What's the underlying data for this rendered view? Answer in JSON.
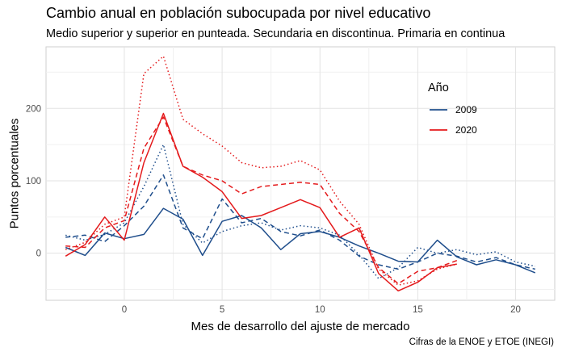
{
  "chart_data": {
    "type": "line",
    "title": "Cambio anual en población subocupada por nivel educativo",
    "subtitle": "Medio superior y superior en punteada. Secundaria en discontinua. Primaria en continua",
    "caption": "Cifras de la ENOE y ETOE (INEGI)",
    "xlabel": "Mes de desarrollo del ajuste de mercado",
    "ylabel": "Puntos porcentuales",
    "xlim": [
      -4,
      22
    ],
    "ylim": [
      -65,
      285
    ],
    "xticks": [
      0,
      5,
      10,
      15,
      20
    ],
    "yticks": [
      0,
      100,
      200
    ],
    "grid": true,
    "legend": {
      "title": "Año",
      "position": "right-inside",
      "entries": [
        "2009",
        "2020"
      ]
    },
    "colors": {
      "2009": "#1f4e8c",
      "2020": "#e41a1c"
    },
    "series": [
      {
        "name": "2009",
        "level": "Primaria",
        "linetype": "solid",
        "x": [
          -3,
          -2,
          -1,
          0,
          1,
          2,
          3,
          4,
          5,
          6,
          7,
          8,
          9,
          10,
          11,
          12,
          13,
          14,
          15,
          16,
          17,
          18,
          19,
          20,
          21
        ],
        "y": [
          8,
          -3,
          28,
          20,
          26,
          62,
          47,
          -3,
          44,
          52,
          35,
          5,
          27,
          30,
          22,
          10,
          0,
          -11,
          -12,
          18,
          -5,
          -16,
          -9,
          -16,
          -27
        ]
      },
      {
        "name": "2009",
        "level": "Secundaria",
        "linetype": "dashed",
        "x": [
          -3,
          -2,
          -1,
          0,
          1,
          2,
          3,
          4,
          5,
          6,
          7,
          8,
          9,
          10,
          11,
          12,
          13,
          14,
          15,
          16,
          17,
          18,
          19,
          20,
          21
        ],
        "y": [
          22,
          25,
          16,
          38,
          65,
          108,
          35,
          20,
          75,
          42,
          48,
          30,
          24,
          32,
          18,
          -4,
          -16,
          -22,
          -12,
          0,
          -4,
          -12,
          -6,
          -16,
          -22
        ]
      },
      {
        "name": "2009",
        "level": "Medio superior y superior",
        "linetype": "dotted",
        "x": [
          -3,
          -2,
          -1,
          0,
          1,
          2,
          3,
          4,
          5,
          6,
          7,
          8,
          9,
          10,
          11,
          12,
          13,
          14,
          15,
          16,
          17,
          18,
          19,
          20,
          21
        ],
        "y": [
          25,
          18,
          26,
          42,
          92,
          150,
          40,
          14,
          30,
          38,
          42,
          32,
          38,
          35,
          25,
          -2,
          -35,
          -20,
          8,
          0,
          5,
          -2,
          2,
          -12,
          -18
        ]
      },
      {
        "name": "2020",
        "level": "Primaria",
        "linetype": "solid",
        "x": [
          -3,
          -2,
          -1,
          0,
          1,
          2,
          3,
          4,
          5,
          6,
          7,
          8,
          9,
          10,
          11,
          12,
          13,
          14,
          15,
          16,
          17
        ],
        "y": [
          -4,
          12,
          50,
          18,
          125,
          193,
          120,
          105,
          85,
          48,
          52,
          63,
          74,
          63,
          22,
          35,
          -28,
          -52,
          -40,
          -20,
          -15
        ]
      },
      {
        "name": "2020",
        "level": "Secundaria",
        "linetype": "dashed",
        "x": [
          -3,
          -2,
          -1,
          0,
          1,
          2,
          3,
          4,
          5,
          6,
          7,
          8,
          9,
          10,
          11,
          12,
          13,
          14,
          15,
          16,
          17
        ],
        "y": [
          10,
          8,
          35,
          45,
          145,
          188,
          120,
          108,
          100,
          82,
          92,
          95,
          98,
          95,
          55,
          30,
          -20,
          -42,
          -25,
          -20,
          -10
        ]
      },
      {
        "name": "2020",
        "level": "Medio superior y superior",
        "linetype": "dotted",
        "x": [
          -3,
          -2,
          -1,
          0,
          1,
          2,
          3,
          4,
          5,
          6,
          7,
          8,
          9,
          10,
          11,
          12,
          13,
          14,
          15,
          16,
          17
        ],
        "y": [
          5,
          15,
          40,
          50,
          248,
          272,
          185,
          165,
          148,
          125,
          118,
          120,
          128,
          115,
          72,
          40,
          -22,
          -44,
          -38,
          -22,
          -15
        ]
      }
    ]
  }
}
